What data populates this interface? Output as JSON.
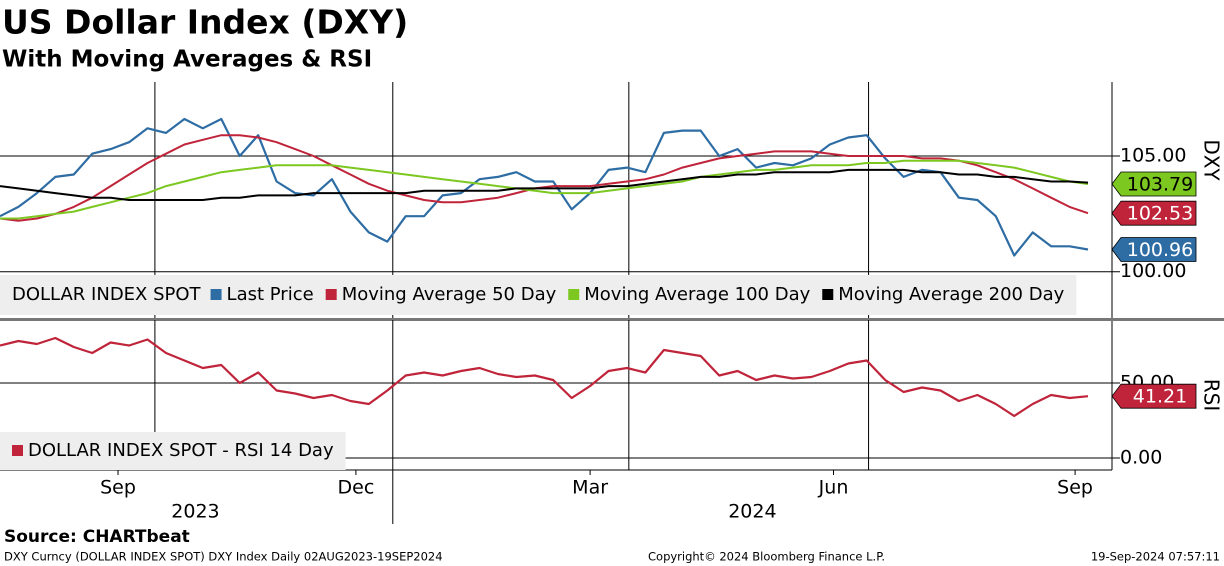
{
  "title": "US Dollar Index (DXY)",
  "subtitle": "With Moving Averages & RSI",
  "footer": {
    "source": "Source: CHARTbeat",
    "description": "DXY Curncy (DOLLAR INDEX SPOT) DXY Index  Daily 02AUG2023-19SEP2024",
    "copyright": "Copyright© 2024 Bloomberg Finance L.P.",
    "timestamp": "19-Sep-2024 07:57:11"
  },
  "chart_data": [
    {
      "type": "line",
      "axis_label": "DXY",
      "legend_title": "DOLLAR INDEX SPOT",
      "ylim": [
        98,
        108.2
      ],
      "yticks": [
        {
          "value": 100,
          "label": "100.00"
        },
        {
          "value": 105,
          "label": "105.00"
        }
      ],
      "grid": true,
      "xgrid": [
        8.4,
        21.3,
        34.1,
        47.1
      ],
      "series": [
        {
          "name": "Last Price",
          "color": "#2e6da4",
          "tag": true,
          "values": [
            102.4,
            102.8,
            103.4,
            104.1,
            104.2,
            105.1,
            105.3,
            105.6,
            106.2,
            106.0,
            106.6,
            106.2,
            106.6,
            105.0,
            105.9,
            103.9,
            103.4,
            103.3,
            104.0,
            102.6,
            101.7,
            101.3,
            102.4,
            102.4,
            103.3,
            103.4,
            104.0,
            104.1,
            104.3,
            103.9,
            103.9,
            102.7,
            103.4,
            104.4,
            104.5,
            104.3,
            106.0,
            106.1,
            106.1,
            105.0,
            105.3,
            104.5,
            104.7,
            104.6,
            104.9,
            105.5,
            105.8,
            105.9,
            104.9,
            104.1,
            104.4,
            104.3,
            103.2,
            103.1,
            102.4,
            100.7,
            101.7,
            101.1,
            101.1,
            100.96
          ]
        },
        {
          "name": "Moving Average 50 Day",
          "color": "#c0243a",
          "tag": true,
          "values": [
            102.3,
            102.2,
            102.3,
            102.5,
            102.8,
            103.2,
            103.7,
            104.2,
            104.7,
            105.1,
            105.5,
            105.7,
            105.9,
            105.9,
            105.8,
            105.6,
            105.3,
            105.0,
            104.6,
            104.2,
            103.8,
            103.5,
            103.3,
            103.1,
            103.0,
            103.0,
            103.1,
            103.2,
            103.4,
            103.6,
            103.7,
            103.7,
            103.7,
            103.8,
            103.9,
            104.0,
            104.2,
            104.5,
            104.7,
            104.9,
            105.0,
            105.1,
            105.2,
            105.2,
            105.2,
            105.1,
            105.0,
            105.0,
            105.0,
            105.0,
            104.9,
            104.9,
            104.8,
            104.6,
            104.3,
            104.0,
            103.6,
            103.2,
            102.8,
            102.53
          ]
        },
        {
          "name": "Moving Average 100 Day",
          "color": "#7cc820",
          "tag": true,
          "tag_text": "#000",
          "values": [
            102.3,
            102.3,
            102.4,
            102.5,
            102.6,
            102.8,
            103.0,
            103.2,
            103.4,
            103.7,
            103.9,
            104.1,
            104.3,
            104.4,
            104.5,
            104.6,
            104.6,
            104.6,
            104.6,
            104.5,
            104.4,
            104.3,
            104.2,
            104.1,
            104.0,
            103.9,
            103.8,
            103.7,
            103.6,
            103.5,
            103.4,
            103.4,
            103.4,
            103.5,
            103.6,
            103.7,
            103.8,
            103.9,
            104.1,
            104.2,
            104.3,
            104.4,
            104.4,
            104.5,
            104.6,
            104.6,
            104.6,
            104.7,
            104.7,
            104.8,
            104.8,
            104.8,
            104.8,
            104.7,
            104.6,
            104.5,
            104.3,
            104.1,
            103.9,
            103.79
          ]
        },
        {
          "name": "Moving Average 200 Day",
          "color": "#000000",
          "tag": false,
          "values": [
            103.7,
            103.6,
            103.5,
            103.4,
            103.3,
            103.2,
            103.2,
            103.1,
            103.1,
            103.1,
            103.1,
            103.1,
            103.2,
            103.2,
            103.3,
            103.3,
            103.3,
            103.4,
            103.4,
            103.4,
            103.4,
            103.4,
            103.4,
            103.5,
            103.5,
            103.5,
            103.5,
            103.5,
            103.6,
            103.6,
            103.6,
            103.6,
            103.6,
            103.7,
            103.7,
            103.8,
            103.9,
            104.0,
            104.1,
            104.1,
            104.2,
            104.2,
            104.3,
            104.3,
            104.3,
            104.3,
            104.4,
            104.4,
            104.4,
            104.4,
            104.3,
            104.3,
            104.2,
            104.2,
            104.1,
            104.1,
            104.0,
            103.9,
            103.9,
            103.85
          ]
        }
      ]
    },
    {
      "type": "line",
      "axis_label": "RSI",
      "ylim": [
        -8,
        92
      ],
      "yticks": [
        {
          "value": 0,
          "label": "0.00"
        },
        {
          "value": 50,
          "label": "50.00"
        }
      ],
      "grid": true,
      "xgrid": [
        8.4,
        21.3,
        34.1,
        47.1
      ],
      "xticks": [
        {
          "value": 6.4,
          "label": "Sep"
        },
        {
          "value": 19.3,
          "label": "Dec"
        },
        {
          "value": 32,
          "label": "Mar"
        },
        {
          "value": 45.2,
          "label": "Jun"
        },
        {
          "value": 58.3,
          "label": "Sep"
        }
      ],
      "year_labels": [
        {
          "value": 10.6,
          "label": "2023"
        },
        {
          "value": 40.8,
          "label": "2024"
        }
      ],
      "year_separator": 21.3,
      "series": [
        {
          "name": "DOLLAR INDEX SPOT - RSI 14 Day",
          "color": "#c0243a",
          "tag": true,
          "values": [
            75,
            78,
            76,
            80,
            74,
            70,
            77,
            75,
            79,
            70,
            65,
            60,
            62,
            50,
            57,
            45,
            43,
            40,
            42,
            38,
            36,
            45,
            55,
            57,
            55,
            58,
            60,
            56,
            54,
            55,
            52,
            40,
            48,
            58,
            60,
            57,
            72,
            70,
            68,
            55,
            58,
            52,
            55,
            53,
            54,
            58,
            63,
            65,
            52,
            44,
            47,
            45,
            38,
            42,
            36,
            28,
            36,
            42,
            40,
            41.21
          ]
        }
      ]
    }
  ]
}
